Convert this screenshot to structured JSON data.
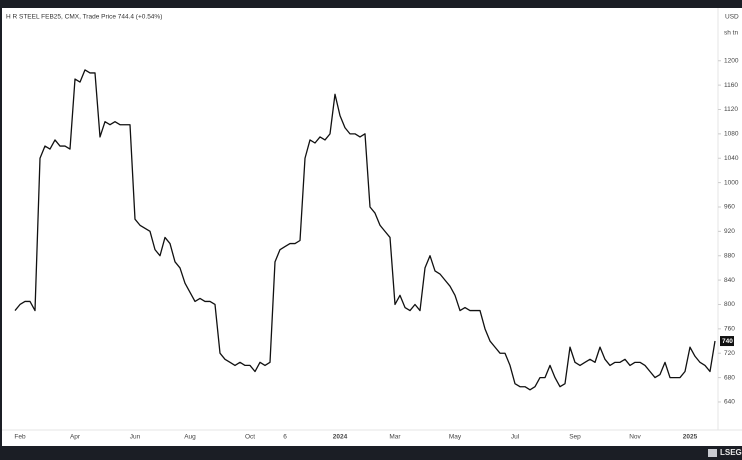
{
  "chart_data": {
    "type": "line",
    "title": "H R STEEL FEB25, CMX, Trade Price 744.4 (+0.54%)",
    "currency": "USD",
    "unit": "sh tn",
    "brand": "LSEG",
    "categories": [
      null,
      "Feb",
      null,
      null,
      null,
      null,
      null,
      null,
      null,
      null,
      null,
      null,
      "Apr",
      null,
      null,
      null,
      null,
      null,
      null,
      null,
      null,
      null,
      null,
      null,
      "Jun",
      null,
      null,
      null,
      null,
      null,
      null,
      null,
      null,
      null,
      null,
      "Aug",
      null,
      null,
      null,
      null,
      null,
      null,
      null,
      null,
      null,
      null,
      null,
      "Oct",
      null,
      null,
      null,
      null,
      null,
      null,
      "6",
      null,
      null,
      null,
      null,
      null,
      null,
      null,
      null,
      null,
      null,
      "2024",
      null,
      null,
      null,
      null,
      null,
      null,
      null,
      null,
      null,
      null,
      "Mar",
      null,
      null,
      null,
      null,
      null,
      null,
      null,
      null,
      null,
      null,
      null,
      "May",
      null,
      null,
      null,
      null,
      null,
      null,
      null,
      null,
      null,
      null,
      null,
      "Jul",
      null,
      null,
      null,
      null,
      null,
      null,
      null,
      null,
      null,
      null,
      null,
      "Sep",
      null,
      null,
      null,
      null,
      null,
      null,
      null,
      null,
      null,
      null,
      null,
      "Nov",
      null,
      null,
      null,
      null,
      null,
      null,
      null,
      null,
      null,
      null,
      "2025",
      null,
      null,
      null,
      null,
      null
    ],
    "series": [
      {
        "color": "#111111",
        "values": [
          790,
          800,
          805,
          805,
          790,
          1040,
          1060,
          1055,
          1070,
          1060,
          1060,
          1055,
          1170,
          1165,
          1185,
          1180,
          1180,
          1075,
          1100,
          1095,
          1100,
          1095,
          1095,
          1095,
          940,
          930,
          925,
          920,
          890,
          880,
          910,
          900,
          870,
          860,
          835,
          820,
          805,
          810,
          805,
          805,
          800,
          720,
          710,
          705,
          700,
          705,
          700,
          700,
          690,
          705,
          700,
          705,
          870,
          890,
          895,
          900,
          900,
          905,
          1040,
          1070,
          1065,
          1075,
          1070,
          1080,
          1145,
          1110,
          1090,
          1080,
          1080,
          1075,
          1080,
          960,
          950,
          930,
          920,
          910,
          800,
          815,
          795,
          790,
          800,
          790,
          860,
          880,
          855,
          850,
          840,
          830,
          815,
          790,
          795,
          790,
          790,
          790,
          760,
          740,
          730,
          720,
          720,
          700,
          670,
          665,
          665,
          660,
          665,
          680,
          680,
          700,
          680,
          665,
          670,
          730,
          705,
          700,
          705,
          710,
          705,
          730,
          710,
          700,
          705,
          705,
          710,
          700,
          705,
          705,
          700,
          690,
          680,
          685,
          705,
          680,
          680,
          680,
          690,
          730,
          715,
          705,
          700,
          690,
          740
        ]
      }
    ],
    "last_price": 740,
    "ylim": [
      594,
      1280
    ],
    "yticks": [
      640,
      680,
      720,
      760,
      800,
      840,
      880,
      920,
      960,
      1000,
      1040,
      1080,
      1120,
      1160,
      1200
    ]
  }
}
